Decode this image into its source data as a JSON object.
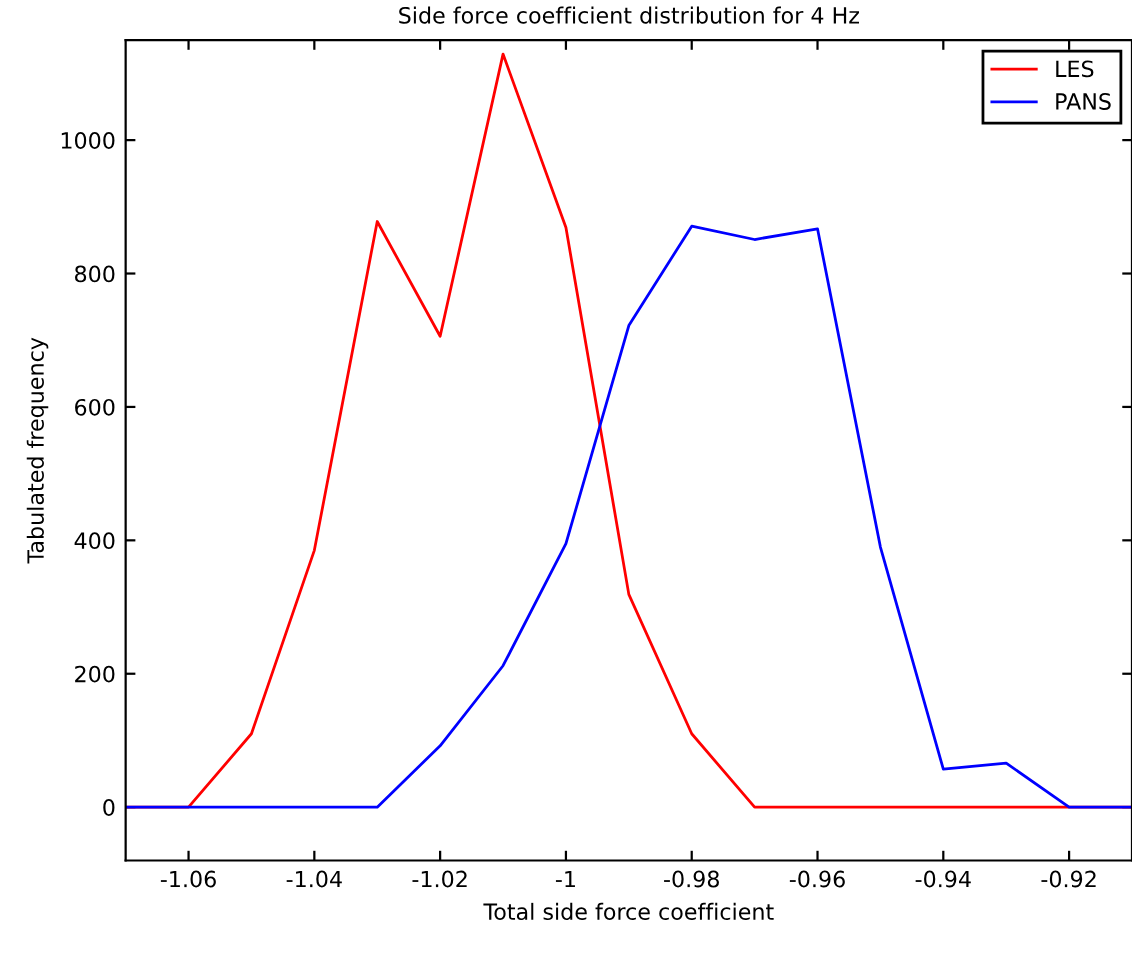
{
  "chart_data": {
    "type": "line",
    "title": "Side force coefficient distribution for 4 Hz",
    "xlabel": "Total side force coefficient",
    "ylabel": "Tabulated frequency",
    "x": [
      -1.07,
      -1.06,
      -1.05,
      -1.04,
      -1.03,
      -1.02,
      -1.01,
      -1.0,
      -0.99,
      -0.98,
      -0.97,
      -0.96,
      -0.95,
      -0.94,
      -0.93,
      -0.92,
      -0.91
    ],
    "series": [
      {
        "name": "LES",
        "color": "#ff0000",
        "values": [
          0,
          0,
          110,
          385,
          878,
          706,
          1129,
          869,
          319,
          110,
          0,
          0,
          0,
          0,
          0,
          0,
          0
        ]
      },
      {
        "name": "PANS",
        "color": "#0000ff",
        "values": [
          0,
          0,
          0,
          0,
          0,
          92,
          212,
          395,
          722,
          871,
          851,
          867,
          390,
          57,
          66,
          0,
          0
        ]
      }
    ],
    "xlim": [
      -1.07,
      -0.91
    ],
    "ylim": [
      -80,
      1150
    ],
    "xticks": [
      -1.06,
      -1.04,
      -1.02,
      -1,
      -0.98,
      -0.96,
      -0.94,
      -0.92
    ],
    "yticks": [
      0,
      200,
      400,
      600,
      800,
      1000
    ],
    "legend": "top right",
    "grid": false
  }
}
